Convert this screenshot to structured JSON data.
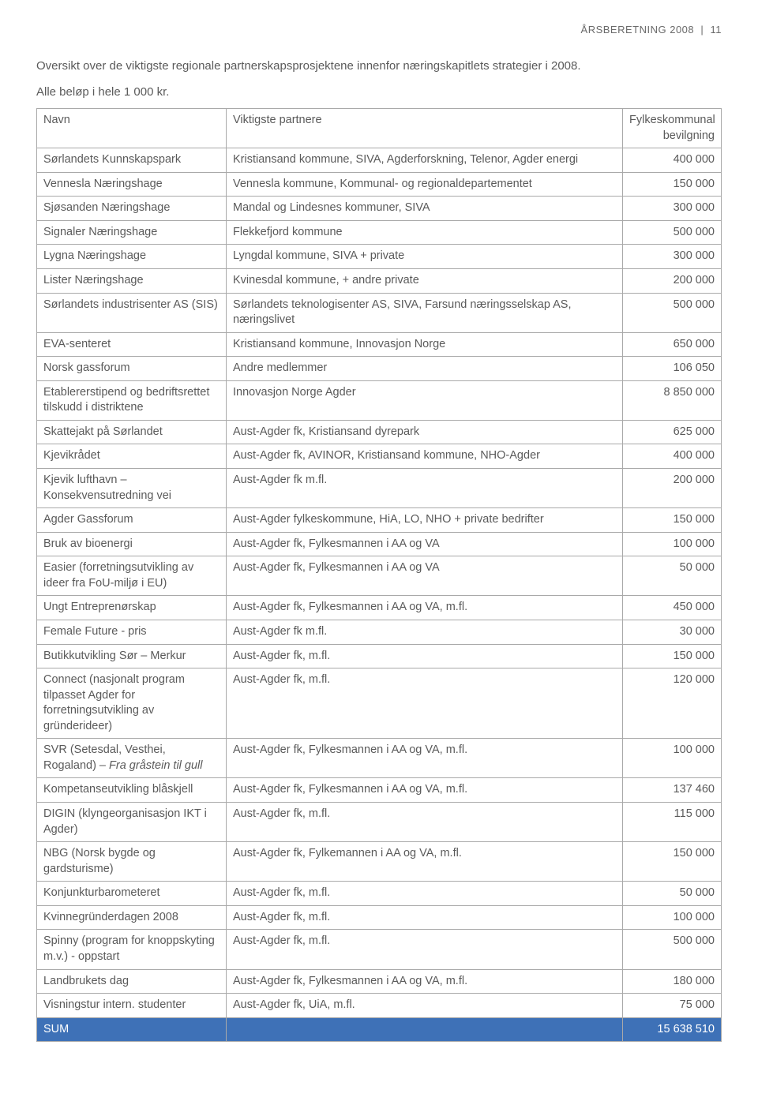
{
  "header": {
    "title": "ÅRSBERETNING 2008",
    "separator": "|",
    "page_num": "11"
  },
  "intro": "Oversikt over de viktigste regionale partnerskapsprosjektene innenfor næringskapitlets strategier i 2008.",
  "note": "Alle beløp i hele 1 000 kr.",
  "columns": {
    "name": "Navn",
    "partner": "Viktigste partnere",
    "amount_line1": "Fylkeskommunal",
    "amount_line2": "bevilgning"
  },
  "rows": [
    {
      "name": "Sørlandets Kunnskapspark",
      "partner": "Kristiansand kommune, SIVA, Agderforskning, Telenor, Agder energi",
      "amount": "400 000"
    },
    {
      "name": "Vennesla Næringshage",
      "partner": "Vennesla kommune, Kommunal- og regionaldepartementet",
      "amount": "150 000"
    },
    {
      "name": "Sjøsanden Næringshage",
      "partner": "Mandal og Lindesnes kommuner, SIVA",
      "amount": "300 000"
    },
    {
      "name": "Signaler Næringshage",
      "partner": "Flekkefjord kommune",
      "amount": "500 000"
    },
    {
      "name": "Lygna Næringshage",
      "partner": "Lyngdal kommune, SIVA + private",
      "amount": "300 000"
    },
    {
      "name": "Lister Næringshage",
      "partner": "Kvinesdal kommune, + andre private",
      "amount": "200 000"
    },
    {
      "name": "Sørlandets industrisenter AS (SIS)",
      "partner": "Sørlandets teknologisenter AS, SIVA, Farsund næringsselskap AS, næringslivet",
      "amount": "500 000"
    },
    {
      "name": "EVA-senteret",
      "partner": "Kristiansand kommune, Innovasjon Norge",
      "amount": "650 000"
    },
    {
      "name": "Norsk gassforum",
      "partner": "Andre medlemmer",
      "amount": "106 050"
    },
    {
      "name": "Etablererstipend og bedriftsrettet tilskudd i distriktene",
      "partner": "Innovasjon Norge Agder",
      "amount": "8 850 000"
    },
    {
      "name": "Skattejakt på Sørlandet",
      "partner": "Aust-Agder fk, Kristiansand dyrepark",
      "amount": "625 000"
    },
    {
      "name": "Kjevikrådet",
      "partner": "Aust-Agder fk, AVINOR, Kristiansand kommune, NHO-Agder",
      "amount": "400 000"
    },
    {
      "name": "Kjevik lufthavn – Konsekvensutredning vei",
      "partner": "Aust-Agder fk m.fl.",
      "amount": "200 000"
    },
    {
      "name": "Agder Gassforum",
      "partner": "Aust-Agder fylkeskommune, HiA, LO, NHO + private bedrifter",
      "amount": "150 000"
    },
    {
      "name": "Bruk av bioenergi",
      "partner": "Aust-Agder fk, Fylkesmannen i AA og VA",
      "amount": "100 000"
    },
    {
      "name": "Easier (forretningsutvikling av ideer fra FoU-miljø i EU)",
      "partner": "Aust-Agder fk, Fylkesmannen i AA og VA",
      "amount": "50 000"
    },
    {
      "name": "Ungt Entreprenørskap",
      "partner": "Aust-Agder fk, Fylkesmannen i AA og VA, m.fl.",
      "amount": "450 000"
    },
    {
      "name": "Female Future - pris",
      "partner": "Aust-Agder fk m.fl.",
      "amount": "30 000"
    },
    {
      "name": "Butikkutvikling Sør – Merkur",
      "partner": "Aust-Agder fk, m.fl.",
      "amount": "150 000"
    },
    {
      "name": "Connect (nasjonalt program tilpasset Agder for forretningsutvikling av gründerideer)",
      "partner": "Aust-Agder fk, m.fl.",
      "amount": "120 000"
    },
    {
      "name_html": "SVR (Setesdal, Vesthei, Rogaland) – <span class=\"italic\">Fra gråstein til gull</span>",
      "partner": "Aust-Agder fk, Fylkesmannen i AA og VA, m.fl.",
      "amount": "100 000"
    },
    {
      "name": "Kompetanseutvikling blåskjell",
      "partner": "Aust-Agder fk, Fylkesmannen i AA og VA, m.fl.",
      "amount": "137 460"
    },
    {
      "name": "DIGIN (klyngeorganisasjon IKT i Agder)",
      "partner": "Aust-Agder fk, m.fl.",
      "amount": "115 000"
    },
    {
      "name": "NBG (Norsk bygde og gardsturisme)",
      "partner": "Aust-Agder fk, Fylkemannen i AA og VA, m.fl.",
      "amount": "150 000"
    },
    {
      "name": "Konjunkturbarometeret",
      "partner": "Aust-Agder fk, m.fl.",
      "amount": "50 000"
    },
    {
      "name": "Kvinnegründerdagen 2008",
      "partner": "Aust-Agder fk, m.fl.",
      "amount": "100 000"
    },
    {
      "name": "Spinny (program for knoppskyting m.v.) - oppstart",
      "partner": "Aust-Agder fk, m.fl.",
      "amount": "500 000"
    },
    {
      "name": "Landbrukets dag",
      "partner": "Aust-Agder fk, Fylkesmannen i AA og VA, m.fl.",
      "amount": "180 000"
    },
    {
      "name": "Visningstur intern. studenter",
      "partner": "Aust-Agder fk, UiA, m.fl.",
      "amount": "75 000"
    }
  ],
  "sum": {
    "label": "SUM",
    "amount": "15 638 510"
  },
  "style": {
    "sum_bg": "#3e71b7",
    "sum_fg": "#ffffff",
    "border_color": "#a9a9a9",
    "text_color": "#5a5a5a"
  }
}
